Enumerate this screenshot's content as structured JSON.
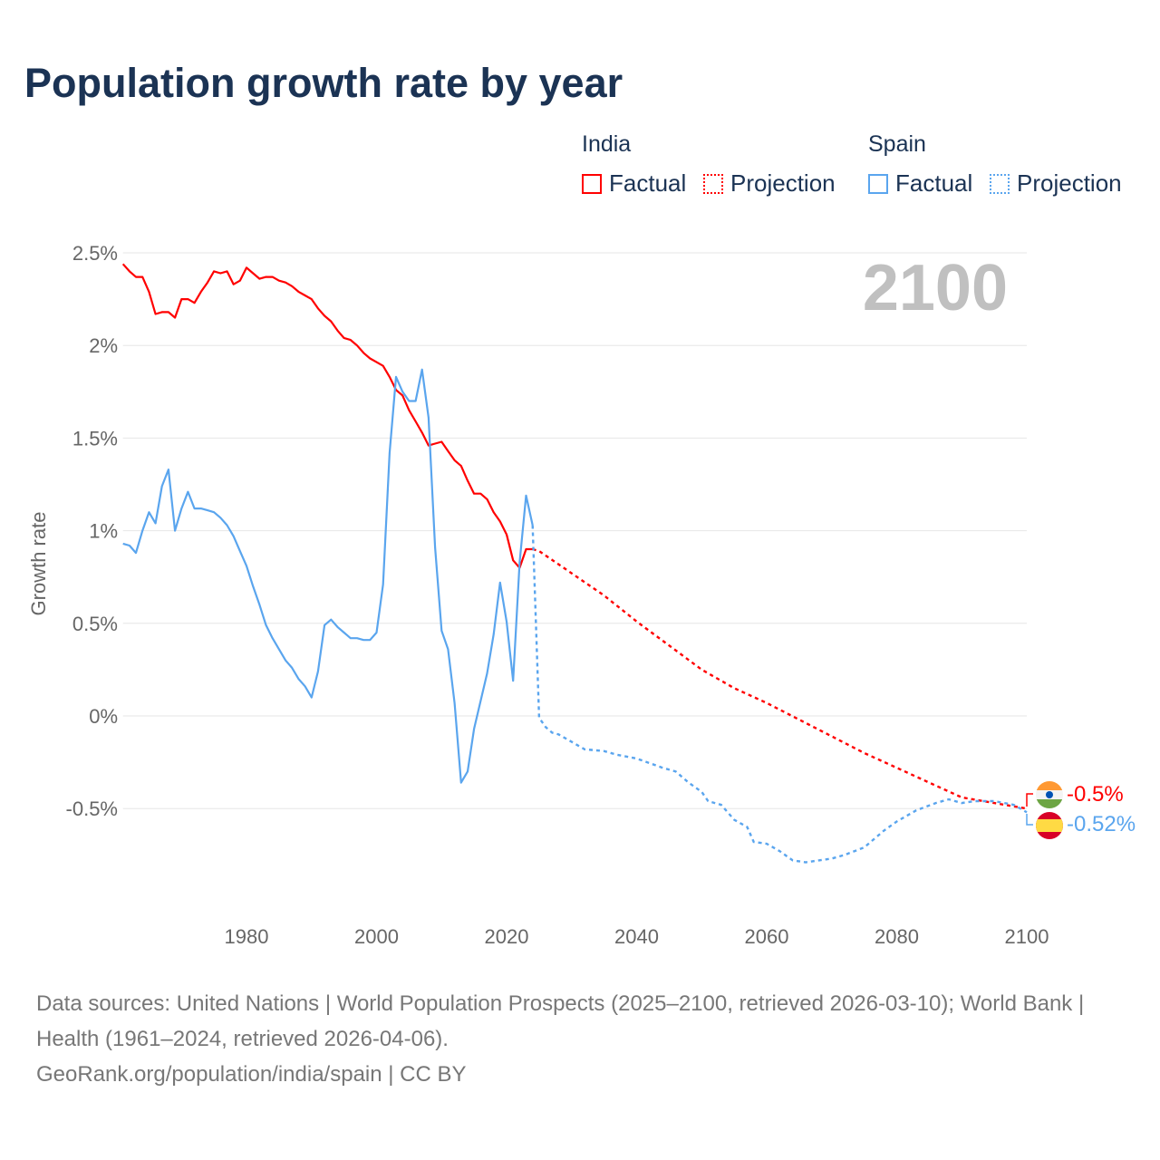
{
  "title": "Population growth rate by year",
  "legend": {
    "groups": [
      {
        "name": "India",
        "color": "#ff0000",
        "factual_label": "Factual",
        "projection_label": "Projection"
      },
      {
        "name": "Spain",
        "color": "#5aa5ee",
        "factual_label": "Factual",
        "projection_label": "Projection"
      }
    ]
  },
  "chart_data": {
    "type": "line",
    "ylabel": "Growth rate",
    "xlabel": "",
    "xlim": [
      1961,
      2100
    ],
    "ylim": [
      -1.0,
      2.5
    ],
    "x_ticks": [
      1980,
      2000,
      2020,
      2040,
      2060,
      2080,
      2100
    ],
    "x_tick_labels": [
      "1980",
      "2000",
      "2020",
      "2040",
      "2060",
      "2080",
      "2100"
    ],
    "y_ticks": [
      2.5,
      2,
      1.5,
      1,
      0.5,
      0,
      -0.5
    ],
    "y_tick_labels": [
      "2.5%",
      "2%",
      "1.5%",
      "1%",
      "0.5%",
      "0%",
      "-0.5%"
    ],
    "grid": true,
    "year_stamp": "2100",
    "series": [
      {
        "name": "India",
        "color": "#ff0000",
        "end_label": "-0.5%",
        "factual": {
          "start_year": 1961,
          "values": [
            2.44,
            2.4,
            2.37,
            2.37,
            2.29,
            2.17,
            2.18,
            2.18,
            2.15,
            2.25,
            2.25,
            2.23,
            2.29,
            2.34,
            2.4,
            2.39,
            2.4,
            2.33,
            2.35,
            2.42,
            2.39,
            2.36,
            2.37,
            2.37,
            2.35,
            2.34,
            2.32,
            2.29,
            2.27,
            2.25,
            2.2,
            2.16,
            2.13,
            2.08,
            2.04,
            2.03,
            2.0,
            1.96,
            1.93,
            1.91,
            1.89,
            1.83,
            1.76,
            1.73,
            1.65,
            1.59,
            1.53,
            1.46,
            1.47,
            1.48,
            1.43,
            1.38,
            1.35,
            1.27,
            1.2,
            1.2,
            1.17,
            1.1,
            1.05,
            0.98,
            0.84,
            0.8,
            0.9,
            0.9
          ]
        },
        "projection": {
          "years": [
            2024,
            2025,
            2030,
            2035,
            2040,
            2045,
            2050,
            2055,
            2060,
            2065,
            2070,
            2075,
            2080,
            2085,
            2090,
            2095,
            2100
          ],
          "values": [
            0.9,
            0.89,
            0.77,
            0.65,
            0.51,
            0.38,
            0.25,
            0.15,
            0.07,
            -0.02,
            -0.11,
            -0.2,
            -0.28,
            -0.36,
            -0.44,
            -0.47,
            -0.5
          ]
        }
      },
      {
        "name": "Spain",
        "color": "#5aa5ee",
        "end_label": "-0.52%",
        "factual": {
          "start_year": 1961,
          "values": [
            0.93,
            0.92,
            0.88,
            1.0,
            1.1,
            1.04,
            1.24,
            1.33,
            1.0,
            1.12,
            1.21,
            1.12,
            1.12,
            1.11,
            1.1,
            1.07,
            1.03,
            0.97,
            0.89,
            0.81,
            0.7,
            0.6,
            0.49,
            0.42,
            0.36,
            0.3,
            0.26,
            0.2,
            0.16,
            0.1,
            0.24,
            0.49,
            0.52,
            0.48,
            0.45,
            0.42,
            0.42,
            0.41,
            0.41,
            0.45,
            0.71,
            1.42,
            1.83,
            1.75,
            1.7,
            1.7,
            1.87,
            1.61,
            0.91,
            0.46,
            0.36,
            0.07,
            -0.36,
            -0.3,
            -0.07,
            0.08,
            0.23,
            0.44,
            0.72,
            0.51,
            0.19,
            0.83,
            1.19,
            1.03
          ]
        },
        "projection": {
          "years": [
            2024,
            2025,
            2026,
            2027,
            2028,
            2030,
            2032,
            2035,
            2037,
            2040,
            2044,
            2046,
            2048,
            2050,
            2051,
            2053,
            2055,
            2057,
            2058,
            2060,
            2062,
            2064,
            2066,
            2068,
            2070,
            2072,
            2075,
            2078,
            2080,
            2083,
            2086,
            2088,
            2090,
            2092,
            2095,
            2098,
            2100
          ],
          "values": [
            1.03,
            -0.01,
            -0.06,
            -0.09,
            -0.1,
            -0.14,
            -0.18,
            -0.19,
            -0.21,
            -0.23,
            -0.28,
            -0.3,
            -0.36,
            -0.41,
            -0.46,
            -0.48,
            -0.56,
            -0.6,
            -0.68,
            -0.69,
            -0.73,
            -0.78,
            -0.79,
            -0.78,
            -0.77,
            -0.75,
            -0.71,
            -0.62,
            -0.57,
            -0.51,
            -0.47,
            -0.45,
            -0.47,
            -0.46,
            -0.46,
            -0.48,
            -0.52
          ]
        }
      }
    ]
  },
  "footer": {
    "sources": "Data sources: United Nations | World Population Prospects (2025–2100, retrieved 2026-03-10); World Bank | Health (1961–2024, retrieved 2026-04-06).",
    "credit": "GeoRank.org/population/india/spain | CC BY"
  }
}
